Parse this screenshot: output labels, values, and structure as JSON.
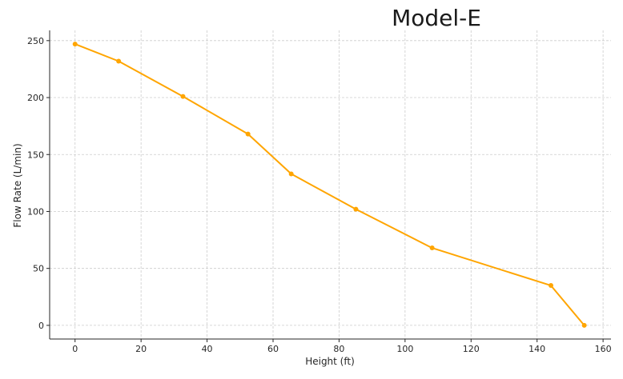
{
  "chart_data": {
    "type": "line",
    "title": "Model-E",
    "xlabel": "Height (ft)",
    "ylabel": "Flow Rate (L/min)",
    "xlim": [
      -7.7,
      162.4
    ],
    "ylim": [
      -12.0,
      259.0
    ],
    "xticks": [
      0,
      20,
      40,
      60,
      80,
      100,
      120,
      140,
      160
    ],
    "yticks": [
      0,
      50,
      100,
      150,
      200,
      250
    ],
    "grid": true,
    "series": [
      {
        "color": "#FFA500",
        "x": [
          0,
          13.2,
          32.7,
          52.4,
          65.5,
          85.1,
          108.2,
          144.2,
          154.3
        ],
        "y": [
          247,
          232,
          201,
          168,
          133,
          102,
          68,
          35,
          0
        ]
      }
    ]
  }
}
